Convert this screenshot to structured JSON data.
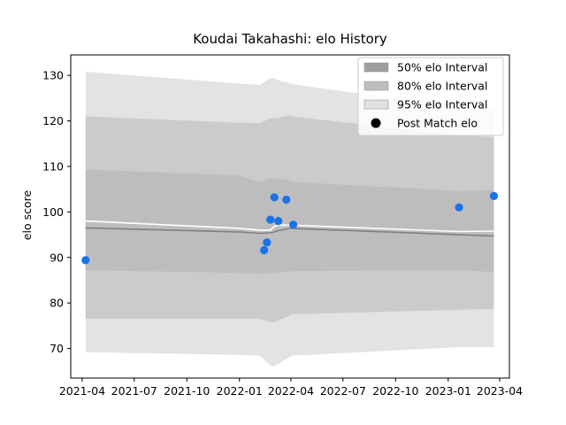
{
  "chart_data": {
    "type": "line",
    "title": "Koudai Takahashi: elo History",
    "xlabel": "",
    "ylabel": "elo score",
    "x_axis_type": "date",
    "xlim": [
      "2021-03-12",
      "2023-04-18"
    ],
    "ylim": [
      63.5,
      134.5
    ],
    "x_ticks": [
      "2021-04",
      "2021-07",
      "2021-10",
      "2022-01",
      "2022-04",
      "2022-07",
      "2022-10",
      "2023-01",
      "2023-04"
    ],
    "x_tick_dates": [
      "2021-04-01",
      "2021-07-01",
      "2021-10-01",
      "2022-01-01",
      "2022-04-01",
      "2022-07-01",
      "2022-10-01",
      "2023-01-01",
      "2023-04-01"
    ],
    "y_ticks": [
      70,
      80,
      90,
      100,
      110,
      120,
      130
    ],
    "grid": false,
    "legend_position": "top-right",
    "legend": [
      {
        "label": "50% elo Interval",
        "kind": "band",
        "color": "#9e9e9e"
      },
      {
        "label": "80% elo Interval",
        "kind": "band",
        "color": "#bdbdbd"
      },
      {
        "label": "95% elo Interval",
        "kind": "band",
        "color": "#e0e0e0"
      },
      {
        "label": "Post Match elo",
        "kind": "marker",
        "color": "#000000"
      }
    ],
    "dates": [
      "2021-04-07",
      "2022-01-01",
      "2022-02-06",
      "2022-02-24",
      "2022-03-03",
      "2022-03-10",
      "2022-03-31",
      "2022-04-02",
      "2023-01-20",
      "2023-03-22"
    ],
    "bands": [
      {
        "name": "95% elo Interval",
        "color": "#e3e3e3",
        "upper": [
          130.8,
          128.2,
          127.9,
          129.4,
          129.4,
          128.9,
          128.3,
          128.1,
          122.9,
          122.5
        ],
        "lower": [
          69.2,
          68.6,
          68.4,
          66.2,
          66.2,
          66.6,
          68.2,
          68.4,
          70.3,
          70.3
        ]
      },
      {
        "name": "80% elo Interval",
        "color": "#cbcbcb",
        "upper": [
          121.0,
          119.6,
          119.5,
          120.6,
          120.6,
          120.7,
          121.2,
          121.0,
          116.8,
          116.4
        ],
        "lower": [
          76.6,
          76.6,
          76.5,
          75.8,
          75.8,
          76.2,
          77.3,
          77.5,
          78.5,
          78.7
        ]
      },
      {
        "name": "50% elo Interval",
        "color": "#bdbdbd",
        "upper": [
          109.3,
          108.0,
          106.5,
          107.4,
          107.4,
          107.3,
          106.9,
          106.6,
          104.6,
          104.8
        ],
        "lower": [
          87.2,
          86.6,
          86.4,
          86.6,
          86.6,
          86.8,
          86.9,
          87.0,
          87.2,
          86.8
        ]
      }
    ],
    "mean_line": {
      "color": "#808080",
      "values": [
        96.5,
        95.6,
        95.3,
        95.4,
        95.6,
        95.9,
        96.4,
        96.4,
        95.0,
        94.7
      ]
    },
    "white_line": {
      "color": "#ffffff",
      "values": [
        98.0,
        96.4,
        96.0,
        96.0,
        96.8,
        97.1,
        97.1,
        97.1,
        95.7,
        95.8
      ]
    },
    "series": [
      {
        "name": "Post Match elo",
        "color": "#1a73e8",
        "points": [
          {
            "x": "2021-04-07",
            "y": 89.4
          },
          {
            "x": "2022-02-13",
            "y": 91.6
          },
          {
            "x": "2022-02-18",
            "y": 93.3
          },
          {
            "x": "2022-02-24",
            "y": 98.3
          },
          {
            "x": "2022-03-03",
            "y": 103.2
          },
          {
            "x": "2022-03-10",
            "y": 98.0
          },
          {
            "x": "2022-03-24",
            "y": 102.7
          },
          {
            "x": "2022-04-05",
            "y": 97.2
          },
          {
            "x": "2023-01-20",
            "y": 101.0
          },
          {
            "x": "2023-03-22",
            "y": 103.5
          }
        ]
      }
    ]
  }
}
